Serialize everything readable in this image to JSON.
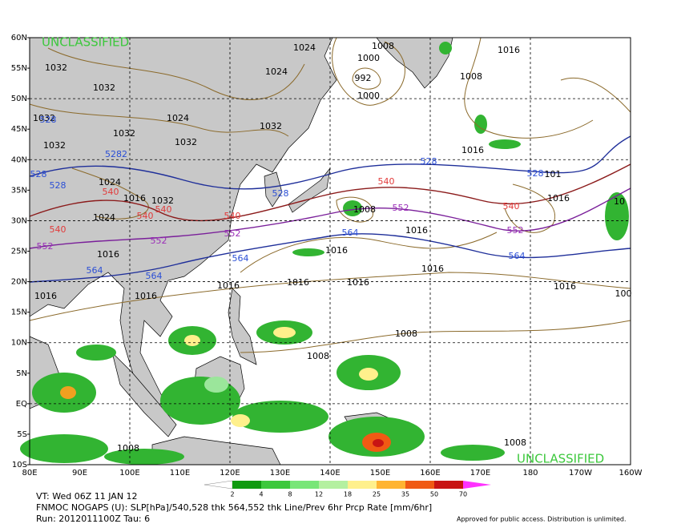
{
  "map": {
    "classification": [
      "UNCLASSIFIED",
      "UNCLASSIFIED"
    ],
    "lat_labels": [
      "60N",
      "55N",
      "50N",
      "45N",
      "40N",
      "35N",
      "30N",
      "25N",
      "20N",
      "15N",
      "10N",
      "5N",
      "EQ",
      "5S",
      "10S"
    ],
    "lon_labels": [
      "80E",
      "90E",
      "100E",
      "110E",
      "120E",
      "130E",
      "140E",
      "150E",
      "160E",
      "170E",
      "180",
      "170W",
      "160W"
    ],
    "slp_labels": [
      "1032",
      "1024",
      "1008",
      "1000",
      "992",
      "1000",
      "1016",
      "1008",
      "1032",
      "1024",
      "1032",
      "1024",
      "1032",
      "1032",
      "1032",
      "1032",
      "1016",
      "1024",
      "1016",
      "1032",
      "1024",
      "1008",
      "1016",
      "1016",
      "1016",
      "1016",
      "1016",
      "1016",
      "1016",
      "1016",
      "1016",
      "1016",
      "1008",
      "1008",
      "1008",
      "1008",
      "1016",
      "101",
      "10",
      "100"
    ],
    "thickness_labels": [
      {
        "text": "528",
        "color": "#2b4fd6"
      },
      {
        "text": "5282",
        "color": "#2b4fd6"
      },
      {
        "text": "528",
        "color": "#2b4fd6"
      },
      {
        "text": "528",
        "color": "#2b4fd6"
      },
      {
        "text": "540",
        "color": "#e23a3a"
      },
      {
        "text": "540",
        "color": "#e23a3a"
      },
      {
        "text": "540",
        "color": "#e23a3a"
      },
      {
        "text": "540",
        "color": "#e23a3a"
      },
      {
        "text": "540",
        "color": "#e23a3a"
      },
      {
        "text": "552",
        "color": "#9b2fb8"
      },
      {
        "text": "552",
        "color": "#9b2fb8"
      },
      {
        "text": "552",
        "color": "#9b2fb8"
      },
      {
        "text": "564",
        "color": "#2b4fd6"
      },
      {
        "text": "564",
        "color": "#2b4fd6"
      },
      {
        "text": "564",
        "color": "#2b4fd6"
      },
      {
        "text": "528",
        "color": "#2b4fd6"
      },
      {
        "text": "528",
        "color": "#2b4fd6"
      },
      {
        "text": "528",
        "color": "#2b4fd6"
      },
      {
        "text": "540",
        "color": "#e23a3a"
      },
      {
        "text": "540",
        "color": "#e23a3a"
      },
      {
        "text": "552",
        "color": "#9b2fb8"
      },
      {
        "text": "552",
        "color": "#9b2fb8"
      },
      {
        "text": "564",
        "color": "#2b4fd6"
      },
      {
        "text": "564",
        "color": "#2b4fd6"
      }
    ]
  },
  "colorbar": {
    "labels": [
      2,
      4,
      8,
      12,
      18,
      25,
      35,
      50,
      70
    ]
  },
  "footer": {
    "valid_time": "VT: Wed 06Z 11 JAN 12",
    "model": "FNMOC NOGAPS (U): SLP[hPa]/540,528 thk 564,552 thk Line/Prev 6hr Prcp Rate [mm/6hr]",
    "run": "Run: 2012011100Z Tau: 6",
    "disclaimer": "Approved for public access. Distribution is unlimited."
  }
}
